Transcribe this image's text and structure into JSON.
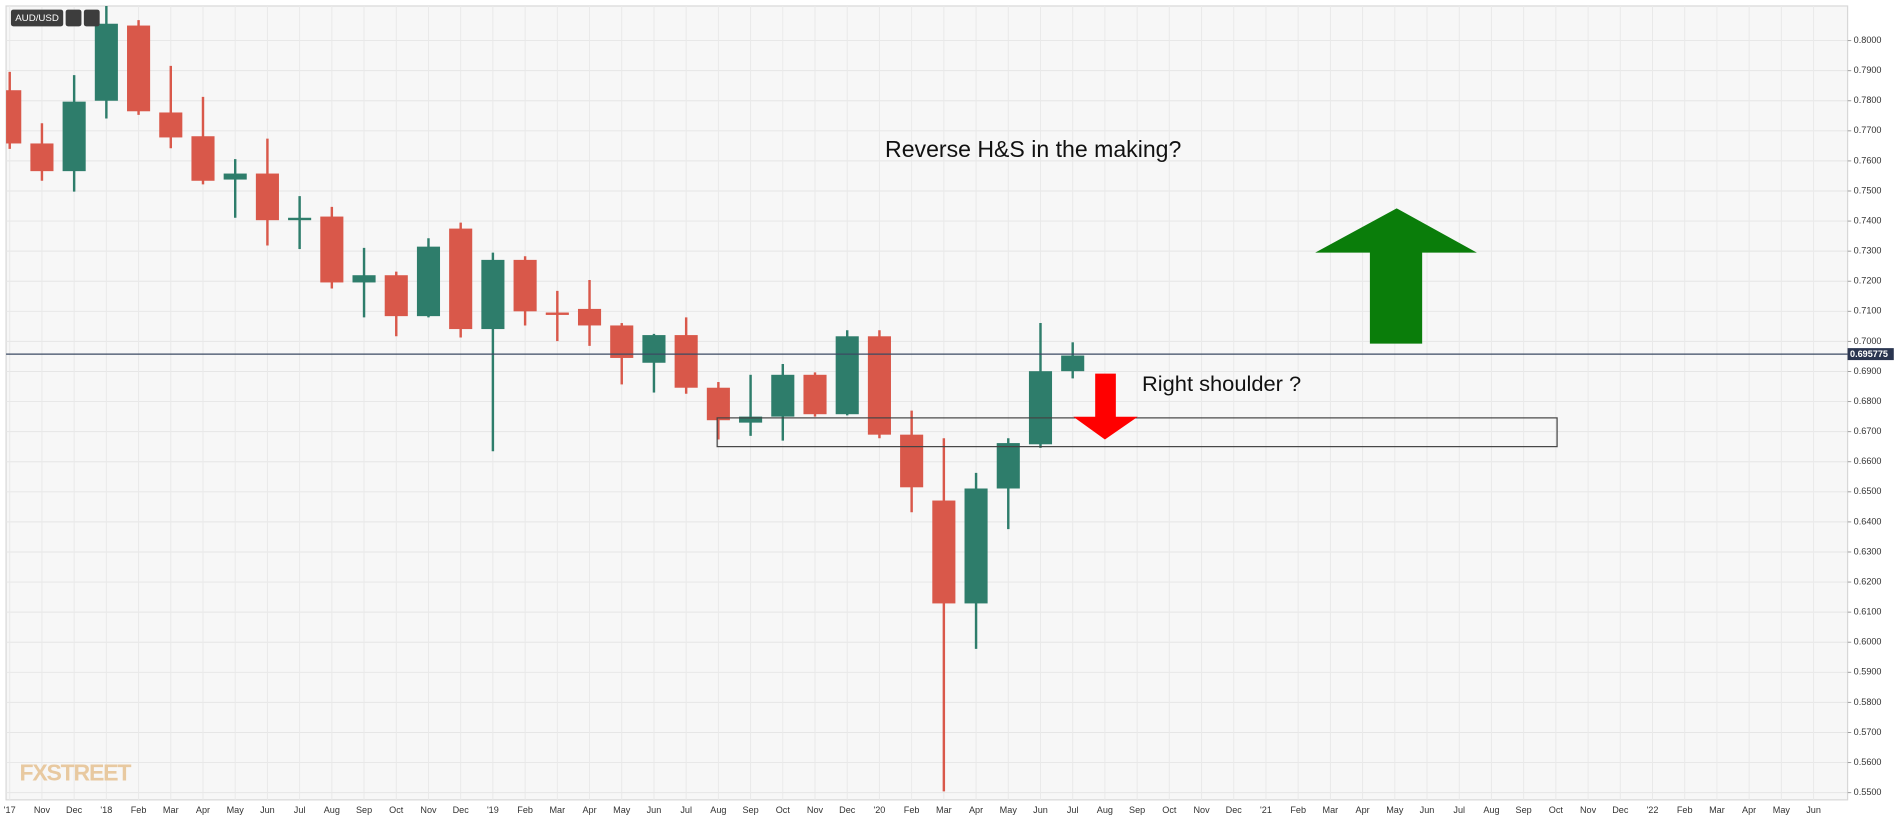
{
  "chart_data": {
    "type": "candlestick",
    "title": "AUD/USD",
    "watermark": "FXSTREET",
    "annotations": [
      "Reverse H&S in the making?",
      "Right shoulder ?"
    ],
    "categories": [
      "'17",
      "Nov",
      "Dec",
      "'18",
      "Feb",
      "Mar",
      "Apr",
      "May",
      "Jun",
      "Jul",
      "Aug",
      "Sep",
      "Oct",
      "Nov",
      "Dec",
      "'19",
      "Feb",
      "Mar",
      "Apr",
      "May",
      "Jun",
      "Jul",
      "Aug",
      "Sep",
      "Oct",
      "Nov",
      "Dec",
      "'20",
      "Feb",
      "Mar",
      "Apr",
      "May",
      "Jun",
      "Jul",
      "Aug",
      "Sep",
      "Oct",
      "Nov",
      "Dec",
      "'21",
      "Feb",
      "Mar",
      "Apr",
      "May",
      "Jun",
      "Jul",
      "Aug",
      "Sep",
      "Oct",
      "Nov",
      "Dec",
      "'22",
      "Feb",
      "Mar",
      "Apr",
      "May",
      "Jun"
    ],
    "open": [
      0.7835,
      0.7658,
      0.7566,
      0.78,
      0.805,
      0.7761,
      0.7682,
      0.7538,
      0.7558,
      0.7403,
      0.7415,
      0.7196,
      0.722,
      0.7084,
      0.7375,
      0.7041,
      0.7271,
      0.7096,
      0.7108,
      0.7053,
      0.6929,
      0.7021,
      0.6846,
      0.673,
      0.675,
      0.6889,
      0.6758,
      0.7017,
      0.669,
      0.6471,
      0.6129,
      0.6511,
      0.6658,
      0.6901,
      null,
      null,
      null,
      null,
      null,
      null,
      null,
      null,
      null,
      null,
      null,
      null,
      null,
      null,
      null,
      null,
      null,
      null,
      null,
      null,
      null,
      null,
      null
    ],
    "high": [
      0.7896,
      0.7725,
      0.7885,
      0.8115,
      0.8068,
      0.7916,
      0.7813,
      0.7606,
      0.7674,
      0.7483,
      0.7447,
      0.7311,
      0.7232,
      0.7343,
      0.7395,
      0.7295,
      0.7283,
      0.7168,
      0.7204,
      0.7061,
      0.7025,
      0.708,
      0.6865,
      0.6889,
      0.6925,
      0.6897,
      0.7037,
      0.7037,
      0.677,
      0.6678,
      0.6563,
      0.6678,
      0.7061,
      0.6997,
      null,
      null,
      null,
      null,
      null,
      null,
      null,
      null,
      null,
      null,
      null,
      null,
      null,
      null,
      null,
      null,
      null,
      null,
      null,
      null,
      null,
      null,
      null
    ],
    "low": [
      0.764,
      0.7534,
      0.7498,
      0.7741,
      0.7753,
      0.7642,
      0.7522,
      0.7411,
      0.7319,
      0.7307,
      0.7176,
      0.708,
      0.7017,
      0.708,
      0.7013,
      0.6635,
      0.7053,
      0.7001,
      0.6985,
      0.6857,
      0.683,
      0.6826,
      0.6674,
      0.6686,
      0.667,
      0.675,
      0.6754,
      0.6678,
      0.6432,
      0.5504,
      0.5978,
      0.6376,
      0.6646,
      0.6877,
      null,
      null,
      null,
      null,
      null,
      null,
      null,
      null,
      null,
      null,
      null,
      null,
      null,
      null,
      null,
      null,
      null,
      null,
      null,
      null,
      null,
      null,
      null
    ],
    "close": [
      0.7658,
      0.7566,
      0.7797,
      0.8056,
      0.7765,
      0.7678,
      0.7534,
      0.7558,
      0.7403,
      0.7411,
      0.7196,
      0.722,
      0.7084,
      0.7315,
      0.7041,
      0.7271,
      0.71,
      0.7088,
      0.7053,
      0.6945,
      0.7021,
      0.6846,
      0.6738,
      0.675,
      0.6889,
      0.6758,
      0.7017,
      0.669,
      0.6515,
      0.6129,
      0.6511,
      0.6662,
      0.6901,
      0.6953,
      null,
      null,
      null,
      null,
      null,
      null,
      null,
      null,
      null,
      null,
      null,
      null,
      null,
      null,
      null,
      null,
      null,
      null,
      null,
      null,
      null,
      null,
      null
    ],
    "up_color": "#2e7d6b",
    "down_color": "#d9584a",
    "current_price": {
      "value": 0.695775,
      "label": "0.695775"
    },
    "ylim": [
      0.5476,
      0.8115
    ],
    "yticks": [
      {
        "value": 0.55,
        "label": "0.5500"
      },
      {
        "value": 0.56,
        "label": "0.5600"
      },
      {
        "value": 0.57,
        "label": "0.5700"
      },
      {
        "value": 0.58,
        "label": "0.5800"
      },
      {
        "value": 0.59,
        "label": "0.5900"
      },
      {
        "value": 0.6,
        "label": "0.6000"
      },
      {
        "value": 0.61,
        "label": "0.6100"
      },
      {
        "value": 0.62,
        "label": "0.6200"
      },
      {
        "value": 0.63,
        "label": "0.6300"
      },
      {
        "value": 0.64,
        "label": "0.6400"
      },
      {
        "value": 0.65,
        "label": "0.6500"
      },
      {
        "value": 0.66,
        "label": "0.6600"
      },
      {
        "value": 0.67,
        "label": "0.6700"
      },
      {
        "value": 0.68,
        "label": "0.6800"
      },
      {
        "value": 0.69,
        "label": "0.6900"
      },
      {
        "value": 0.7,
        "label": "0.7000"
      },
      {
        "value": 0.71,
        "label": "0.7100"
      },
      {
        "value": 0.72,
        "label": "0.7200"
      },
      {
        "value": 0.73,
        "label": "0.7300"
      },
      {
        "value": 0.74,
        "label": "0.7400"
      },
      {
        "value": 0.75,
        "label": "0.7500"
      },
      {
        "value": 0.76,
        "label": "0.7600"
      },
      {
        "value": 0.77,
        "label": "0.7700"
      },
      {
        "value": 0.78,
        "label": "0.7800"
      },
      {
        "value": 0.79,
        "label": "0.7900"
      },
      {
        "value": 0.8,
        "label": "0.8000"
      }
    ],
    "grid": true
  }
}
